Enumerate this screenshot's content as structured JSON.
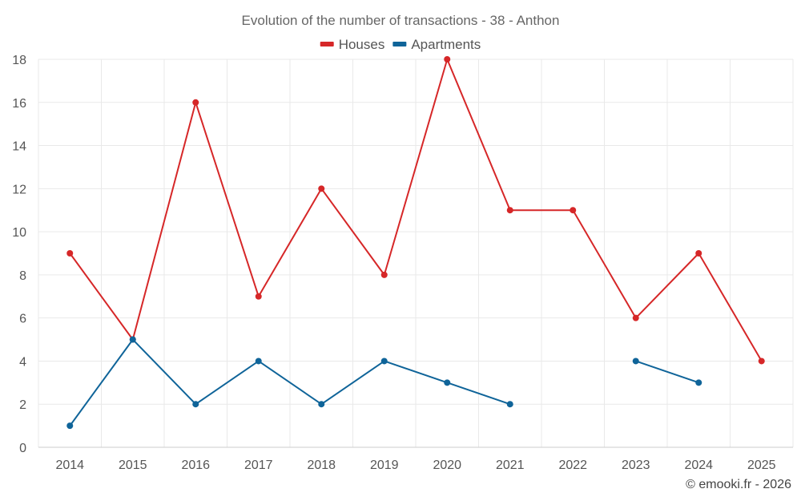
{
  "chart_data": {
    "type": "line",
    "title": "Evolution of the number of transactions - 38 - Anthon",
    "categories": [
      "2014",
      "2015",
      "2016",
      "2017",
      "2018",
      "2019",
      "2020",
      "2021",
      "2022",
      "2023",
      "2024",
      "2025"
    ],
    "ylim": [
      0,
      18
    ],
    "yticks": [
      0,
      2,
      4,
      6,
      8,
      10,
      12,
      14,
      16,
      18
    ],
    "grid": true,
    "legend_position": "top-center",
    "series": [
      {
        "name": "Houses",
        "color": "#d62728",
        "values": [
          9,
          5,
          16,
          7,
          12,
          8,
          18,
          11,
          11,
          6,
          9,
          4
        ]
      },
      {
        "name": "Apartments",
        "color": "#0f6499",
        "values": [
          1,
          5,
          2,
          4,
          2,
          4,
          3,
          2,
          null,
          4,
          3,
          null
        ]
      }
    ]
  },
  "credit": "© emooki.fr - 2026"
}
